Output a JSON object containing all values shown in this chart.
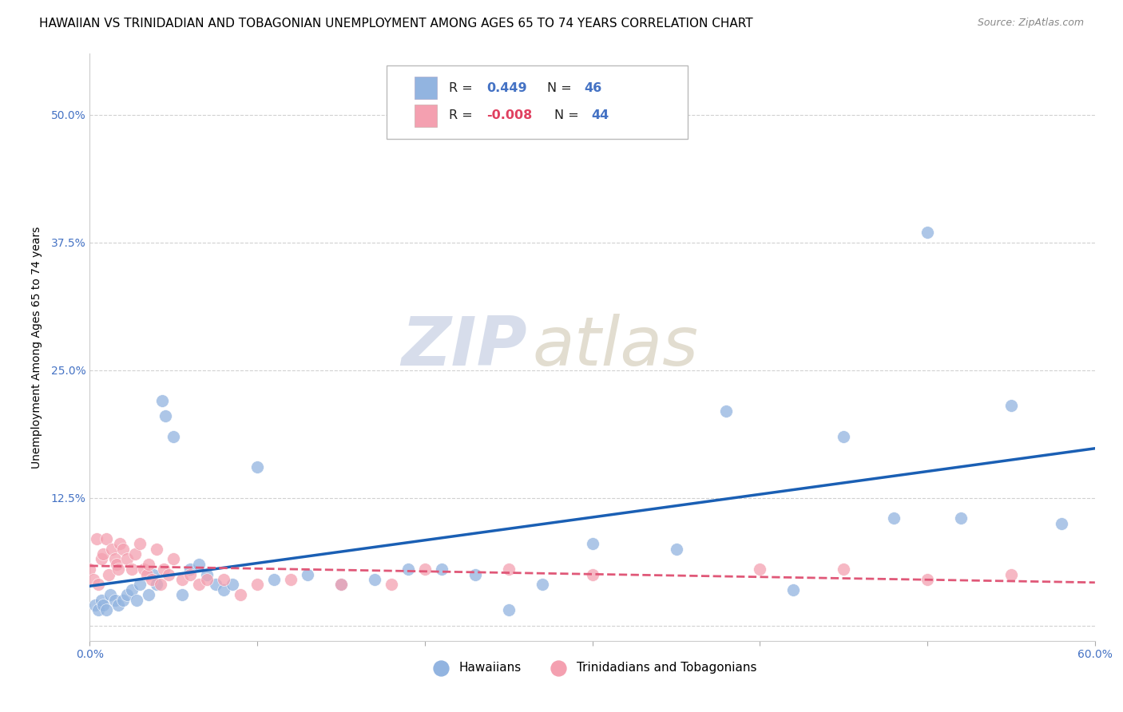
{
  "title": "HAWAIIAN VS TRINIDADIAN AND TOBAGONIAN UNEMPLOYMENT AMONG AGES 65 TO 74 YEARS CORRELATION CHART",
  "source": "Source: ZipAtlas.com",
  "ylabel": "Unemployment Among Ages 65 to 74 years",
  "xlim": [
    0.0,
    0.6
  ],
  "ylim": [
    -0.015,
    0.56
  ],
  "xticks": [
    0.0,
    0.1,
    0.2,
    0.3,
    0.4,
    0.5,
    0.6
  ],
  "xticklabels": [
    "0.0%",
    "",
    "",
    "",
    "",
    "",
    "60.0%"
  ],
  "yticks": [
    0.0,
    0.125,
    0.25,
    0.375,
    0.5
  ],
  "yticklabels": [
    "",
    "12.5%",
    "25.0%",
    "37.5%",
    "50.0%"
  ],
  "hawaiian_R": 0.449,
  "hawaiian_N": 46,
  "trinidadian_R": -0.008,
  "trinidadian_N": 44,
  "hawaiian_color": "#92b4e0",
  "trinidadian_color": "#f4a0b0",
  "hawaiian_line_color": "#1a5fb4",
  "trinidadian_line_color": "#e05878",
  "background_color": "#ffffff",
  "watermark_zip": "ZIP",
  "watermark_atlas": "atlas",
  "hawaiian_x": [
    0.003,
    0.005,
    0.007,
    0.008,
    0.01,
    0.012,
    0.015,
    0.017,
    0.02,
    0.022,
    0.025,
    0.028,
    0.03,
    0.035,
    0.038,
    0.04,
    0.043,
    0.045,
    0.05,
    0.055,
    0.06,
    0.065,
    0.07,
    0.075,
    0.08,
    0.085,
    0.1,
    0.11,
    0.13,
    0.15,
    0.17,
    0.19,
    0.21,
    0.23,
    0.25,
    0.27,
    0.3,
    0.35,
    0.38,
    0.42,
    0.45,
    0.48,
    0.5,
    0.52,
    0.55,
    0.58
  ],
  "hawaiian_y": [
    0.02,
    0.015,
    0.025,
    0.02,
    0.015,
    0.03,
    0.025,
    0.02,
    0.025,
    0.03,
    0.035,
    0.025,
    0.04,
    0.03,
    0.05,
    0.04,
    0.22,
    0.205,
    0.185,
    0.03,
    0.055,
    0.06,
    0.05,
    0.04,
    0.035,
    0.04,
    0.155,
    0.045,
    0.05,
    0.04,
    0.045,
    0.055,
    0.055,
    0.05,
    0.015,
    0.04,
    0.08,
    0.075,
    0.21,
    0.035,
    0.185,
    0.105,
    0.385,
    0.105,
    0.215,
    0.1
  ],
  "trinidadian_x": [
    0.0,
    0.002,
    0.004,
    0.005,
    0.007,
    0.008,
    0.01,
    0.011,
    0.013,
    0.015,
    0.016,
    0.017,
    0.018,
    0.02,
    0.022,
    0.025,
    0.027,
    0.03,
    0.032,
    0.034,
    0.035,
    0.037,
    0.04,
    0.042,
    0.044,
    0.047,
    0.05,
    0.055,
    0.06,
    0.065,
    0.07,
    0.08,
    0.09,
    0.1,
    0.12,
    0.15,
    0.18,
    0.2,
    0.25,
    0.3,
    0.4,
    0.45,
    0.5,
    0.55
  ],
  "trinidadian_y": [
    0.055,
    0.045,
    0.085,
    0.04,
    0.065,
    0.07,
    0.085,
    0.05,
    0.075,
    0.065,
    0.06,
    0.055,
    0.08,
    0.075,
    0.065,
    0.055,
    0.07,
    0.08,
    0.055,
    0.05,
    0.06,
    0.045,
    0.075,
    0.04,
    0.055,
    0.05,
    0.065,
    0.045,
    0.05,
    0.04,
    0.045,
    0.045,
    0.03,
    0.04,
    0.045,
    0.04,
    0.04,
    0.055,
    0.055,
    0.05,
    0.055,
    0.055,
    0.045,
    0.05
  ],
  "legend_hawaiians": "Hawaiians",
  "legend_trinidadians": "Trinidadians and Tobagonians",
  "title_fontsize": 11,
  "axis_label_fontsize": 10,
  "tick_fontsize": 10,
  "source_fontsize": 9
}
